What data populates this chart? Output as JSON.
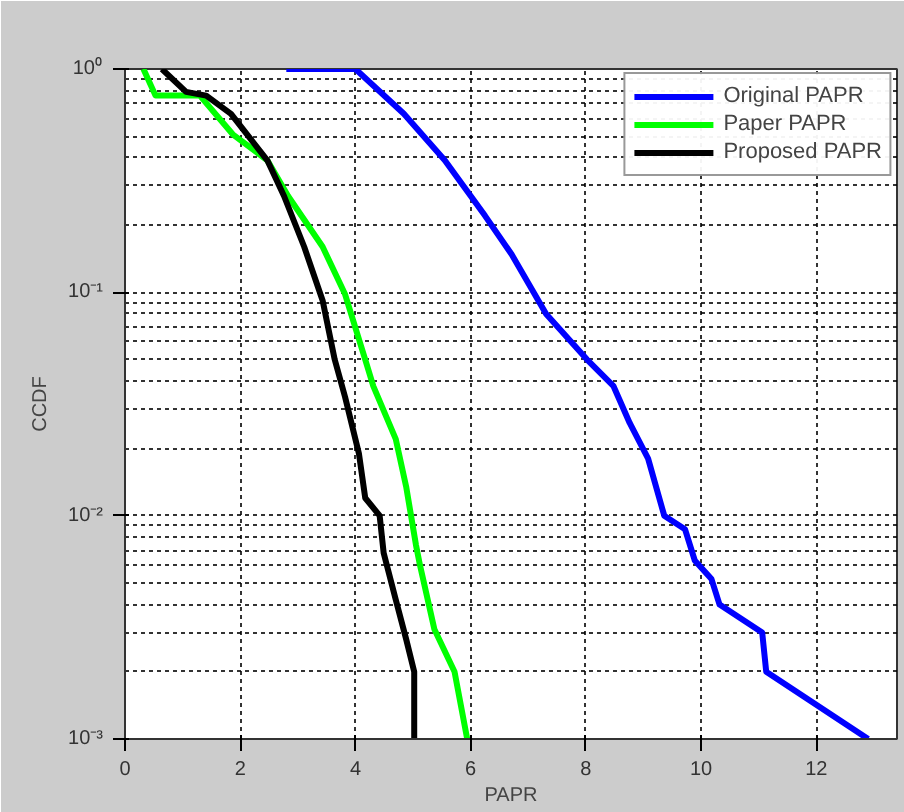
{
  "chart_data": {
    "type": "line",
    "xlabel": "PAPR",
    "ylabel": "CCDF",
    "log": "y",
    "grid": true,
    "legend": "top right",
    "line_style": "solid",
    "marker": "none",
    "xlim": [
      0,
      13.4
    ],
    "xticks": [
      0,
      2,
      4,
      6,
      8,
      10,
      12
    ],
    "ylim": [
      0.001,
      1
    ],
    "yticks": [
      {
        "value": 0.001,
        "label": "10⁻³"
      },
      {
        "value": 0.01,
        "label": "10⁻²"
      },
      {
        "value": 0.1,
        "label": "10⁻¹"
      },
      {
        "value": 1,
        "label": "10⁰"
      }
    ],
    "series": [
      {
        "name": "Original PAPR",
        "color": "#0000ff",
        "x": [
          2.8,
          4.0,
          4.84,
          5.55,
          6.25,
          6.71,
          7.31,
          8.02,
          8.48,
          8.76,
          9.08,
          9.36,
          9.72,
          9.89,
          10.18,
          10.32,
          11.06,
          11.13,
          12.9
        ],
        "values": [
          1,
          1,
          0.63,
          0.39,
          0.22,
          0.148,
          0.08,
          0.05,
          0.038,
          0.026,
          0.018,
          0.01,
          0.0087,
          0.0063,
          0.0052,
          0.004,
          0.003,
          0.002,
          0.001
        ]
      },
      {
        "name": "Paper PAPR",
        "color": "#00ff00",
        "x": [
          0.32,
          0.53,
          1.3,
          1.87,
          2.47,
          2.83,
          3.43,
          3.82,
          4.17,
          4.31,
          4.7,
          4.88,
          5.05,
          5.12,
          5.37,
          5.72,
          5.94
        ],
        "values": [
          1,
          0.76,
          0.76,
          0.51,
          0.39,
          0.27,
          0.16,
          0.098,
          0.05,
          0.038,
          0.022,
          0.0135,
          0.0074,
          0.006,
          0.0031,
          0.002,
          0.001
        ]
      },
      {
        "name": "Proposed PAPR",
        "color": "#000000",
        "x": [
          0.64,
          1.06,
          1.41,
          1.84,
          2.47,
          2.76,
          3.11,
          3.43,
          3.64,
          3.82,
          4.06,
          4.17,
          4.42,
          4.49,
          4.7,
          4.88,
          5.02,
          5.02
        ],
        "values": [
          1,
          0.79,
          0.76,
          0.63,
          0.39,
          0.27,
          0.16,
          0.092,
          0.05,
          0.034,
          0.019,
          0.012,
          0.01,
          0.0068,
          0.0042,
          0.0028,
          0.002,
          0.001
        ]
      }
    ]
  }
}
